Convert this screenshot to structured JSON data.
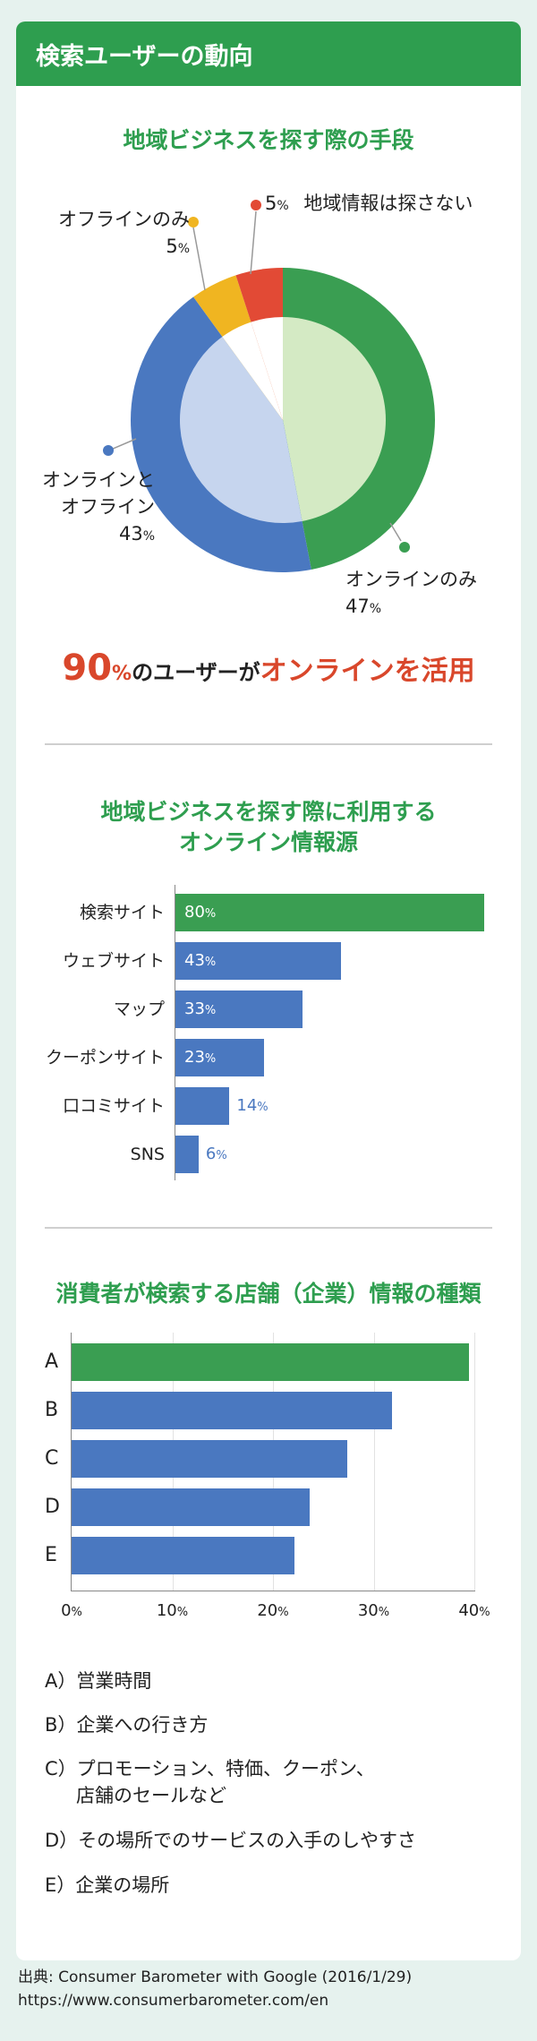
{
  "header": {
    "title": "検索ユーザーの動向"
  },
  "section1": {
    "title": "地域ビジネスを探す際の手段"
  },
  "pie_labels": {
    "not_search": {
      "pct": "5",
      "unit": "%",
      "text": "地域情報は探さない"
    },
    "offline": {
      "text": "オフラインのみ",
      "pct": "5",
      "unit": "%"
    },
    "both": {
      "text1": "オンラインと",
      "text2": "オフライン",
      "pct": "43",
      "unit": "%"
    },
    "online": {
      "text": "オンラインのみ",
      "pct": "47",
      "unit": "%"
    }
  },
  "highlight": {
    "num": "90",
    "unit": "%",
    "mid": "のユーザーが",
    "red": "オンラインを活用"
  },
  "section2": {
    "title1": "地域ビジネスを探す際に利用する",
    "title2": "オンライン情報源"
  },
  "section3": {
    "title": "消費者が検索する店舗（企業）情報の種類"
  },
  "chart_data": [
    {
      "type": "pie",
      "title": "地域ビジネスを探す際の手段",
      "categories": [
        "オンラインのみ",
        "オンラインとオフライン",
        "オフラインのみ",
        "地域情報は探さない"
      ],
      "values": [
        47,
        43,
        5,
        5
      ],
      "colors": [
        "#3a9e52",
        "#4a78c0",
        "#f0b521",
        "#e24a35"
      ]
    },
    {
      "type": "bar",
      "title": "地域ビジネスを探す際に利用するオンライン情報源",
      "categories": [
        "検索サイト",
        "ウェブサイト",
        "マップ",
        "クーポンサイト",
        "口コミサイト",
        "SNS"
      ],
      "values": [
        80,
        43,
        33,
        23,
        14,
        6
      ],
      "unit": "%"
    },
    {
      "type": "bar",
      "title": "消費者が検索する店舗（企業）情報の種類",
      "categories": [
        "A",
        "B",
        "C",
        "D",
        "E"
      ],
      "values": [
        39.5,
        31.8,
        27.4,
        23.6,
        22.1
      ],
      "xlim": [
        0,
        40
      ],
      "xticks": [
        {
          "num": "0",
          "unit": "%"
        },
        {
          "num": "10",
          "unit": "%"
        },
        {
          "num": "20",
          "unit": "%"
        },
        {
          "num": "30",
          "unit": "%"
        },
        {
          "num": "40",
          "unit": "%"
        }
      ]
    }
  ],
  "legend": [
    "A）営業時間",
    "B）企業への行き方",
    "C）プロモーション、特価、クーポン、",
    "店舗のセールなど",
    "D）その場所でのサービスの入手のしやすさ",
    "E）企業の場所"
  ],
  "footer": {
    "line1": "出典: Consumer Barometer with Google (2016/1/29)",
    "line2": "https://www.consumerbarometer.com/en"
  },
  "colors": {
    "green": "#3a9e52",
    "blue": "#4a78c0",
    "yellow": "#f0b521",
    "red": "#e24a35",
    "header": "#2e9e4f",
    "accent_red": "#d9472b"
  }
}
